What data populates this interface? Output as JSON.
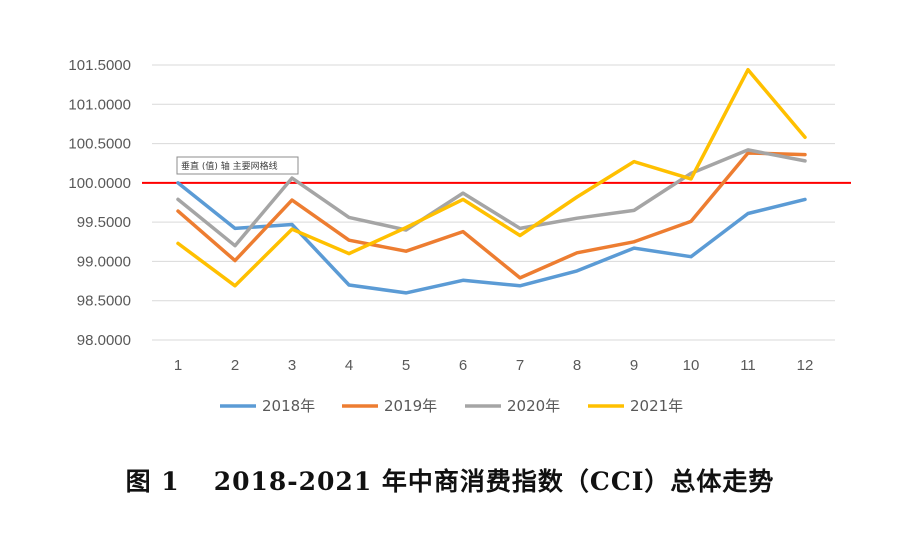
{
  "chart_data": {
    "type": "line",
    "title": "",
    "xlabel": "",
    "ylabel": "",
    "categories": [
      "1",
      "2",
      "3",
      "4",
      "5",
      "6",
      "7",
      "8",
      "9",
      "10",
      "11",
      "12"
    ],
    "ylim": [
      98.0,
      101.5
    ],
    "yticks": [
      "98.0000",
      "98.5000",
      "99.0000",
      "99.5000",
      "100.0000",
      "100.5000",
      "101.0000",
      "101.5000"
    ],
    "ytick_values": [
      98.0,
      98.5,
      99.0,
      99.5,
      100.0,
      100.5,
      101.0,
      101.5
    ],
    "grid": "horizontal",
    "legend_position": "bottom",
    "reference_line": {
      "value": 100.0,
      "color": "#ff0000"
    },
    "series": [
      {
        "name": "2018年",
        "color": "#5b9bd5",
        "values": [
          100.0,
          99.42,
          99.47,
          98.7,
          98.6,
          98.76,
          98.69,
          98.88,
          99.17,
          99.06,
          99.61,
          99.79
        ]
      },
      {
        "name": "2019年",
        "color": "#ed7d31",
        "values": [
          99.64,
          99.01,
          99.78,
          99.27,
          99.13,
          99.38,
          98.79,
          99.11,
          99.25,
          99.51,
          100.38,
          100.36
        ]
      },
      {
        "name": "2020年",
        "color": "#a5a5a5",
        "values": [
          99.79,
          99.2,
          100.06,
          99.56,
          99.4,
          99.87,
          99.42,
          99.55,
          99.65,
          100.12,
          100.42,
          100.28
        ]
      },
      {
        "name": "2021年",
        "color": "#ffc000",
        "values": [
          99.23,
          98.69,
          99.41,
          99.1,
          99.43,
          99.79,
          99.33,
          99.82,
          100.27,
          100.05,
          101.44,
          100.58
        ]
      }
    ],
    "tooltip": "垂直 (值) 轴 主要网格线"
  },
  "caption": {
    "figure_number": "图 1",
    "text": "2018-2021 年中商消费指数（CCI）总体走势"
  }
}
